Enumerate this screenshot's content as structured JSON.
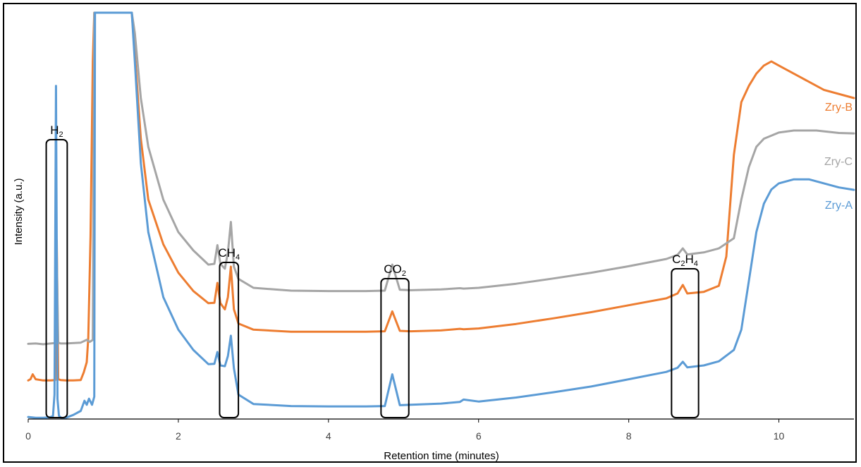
{
  "chart_data": {
    "type": "line",
    "title": "",
    "xlabel": "Retention time (minutes)",
    "ylabel": "Intensity (a.u.)",
    "xlim": [
      0,
      11
    ],
    "ylim": [
      0,
      100
    ],
    "x_ticks": [
      "0",
      "2",
      "4",
      "6",
      "8",
      "10"
    ],
    "grid": false,
    "legend": "inline labels at right end of each trace",
    "peak_labels": [
      {
        "base": "H",
        "sub": "2",
        "x_range": [
          0.24,
          0.52
        ]
      },
      {
        "base": "CH",
        "sub": "4",
        "x_range": [
          2.55,
          2.8
        ]
      },
      {
        "base": "CO",
        "sub": "2",
        "x_range": [
          4.7,
          5.07
        ]
      },
      {
        "base": "C",
        "sub": "2",
        "base2": "H",
        "sub2": "4",
        "x_range": [
          8.57,
          8.93
        ]
      }
    ],
    "series": [
      {
        "name": "Zry-B",
        "color": "#ED7D31",
        "x": [
          0,
          0.03,
          0.06,
          0.1,
          0.2,
          0.3,
          0.36,
          0.38,
          0.4,
          0.43,
          0.5,
          0.6,
          0.7,
          0.74,
          0.78,
          0.8,
          0.83,
          0.86,
          0.88,
          0.9,
          1.38,
          1.42,
          1.5,
          1.6,
          1.8,
          2.0,
          2.2,
          2.4,
          2.48,
          2.52,
          2.56,
          2.62,
          2.66,
          2.7,
          2.74,
          2.8,
          3.0,
          3.5,
          4.0,
          4.5,
          4.75,
          4.85,
          4.95,
          5.1,
          5.5,
          5.75,
          5.8,
          6.0,
          6.5,
          7.0,
          7.5,
          8.0,
          8.5,
          8.65,
          8.72,
          8.78,
          9.0,
          9.2,
          9.3,
          9.4,
          9.5,
          9.6,
          9.7,
          9.8,
          9.9,
          10.0,
          10.3,
          10.6,
          11.0
        ],
        "y": [
          9.5,
          9.8,
          11.0,
          9.8,
          9.5,
          9.5,
          9.6,
          44,
          9.8,
          9.6,
          9.5,
          9.5,
          9.6,
          11.5,
          14,
          20,
          45,
          88,
          100,
          100,
          100,
          90,
          69,
          54,
          43,
          36,
          31.5,
          28.5,
          28.6,
          33.5,
          28.5,
          27,
          30,
          37.5,
          27,
          23.5,
          22,
          21.5,
          21.5,
          21.5,
          21.6,
          26.5,
          21.7,
          21.6,
          21.8,
          22.2,
          22.1,
          22.3,
          23.4,
          24.8,
          26.3,
          28.0,
          29.7,
          30.9,
          33,
          30.9,
          31.3,
          32.8,
          40,
          65,
          78,
          82,
          85,
          87,
          88,
          87,
          84,
          81,
          79
        ]
      },
      {
        "name": "Zry-C",
        "color": "#A5A5A5",
        "x": [
          0,
          0.1,
          0.2,
          0.3,
          0.36,
          0.38,
          0.4,
          0.43,
          0.5,
          0.7,
          0.78,
          0.82,
          0.86,
          0.88,
          0.9,
          1.38,
          1.42,
          1.5,
          1.6,
          1.8,
          2.0,
          2.2,
          2.4,
          2.48,
          2.52,
          2.56,
          2.62,
          2.66,
          2.7,
          2.74,
          2.8,
          3.0,
          3.5,
          4.0,
          4.5,
          4.75,
          4.85,
          4.95,
          5.1,
          5.5,
          5.75,
          5.8,
          6.0,
          6.5,
          7.0,
          7.5,
          8.0,
          8.5,
          8.65,
          8.72,
          8.78,
          9.0,
          9.2,
          9.4,
          9.5,
          9.6,
          9.7,
          9.8,
          10.0,
          10.2,
          10.5,
          10.8,
          11.0
        ],
        "y": [
          18.5,
          18.6,
          18.4,
          18.6,
          18.7,
          40,
          18.8,
          18.6,
          18.6,
          18.8,
          19.5,
          19.0,
          19.5,
          100,
          100,
          100,
          95,
          79,
          67,
          54,
          46,
          41.5,
          38,
          38.2,
          42.8,
          38.2,
          37,
          41,
          48.5,
          37.5,
          34.5,
          32.3,
          31.6,
          31.5,
          31.5,
          31.6,
          38,
          31.8,
          31.7,
          31.9,
          32.2,
          32.1,
          32.3,
          33.3,
          34.6,
          36.0,
          37.6,
          39.4,
          40.4,
          42,
          40.5,
          41,
          42,
          44.5,
          54,
          62,
          67,
          69,
          70.5,
          71,
          71,
          70.4,
          70.3
        ]
      },
      {
        "name": "Zry-A",
        "color": "#5B9BD5",
        "x": [
          0,
          0.1,
          0.2,
          0.28,
          0.33,
          0.35,
          0.37,
          0.39,
          0.41,
          0.43,
          0.46,
          0.5,
          0.6,
          0.7,
          0.75,
          0.78,
          0.81,
          0.85,
          0.88,
          0.89,
          0.9,
          0.92,
          1.38,
          1.42,
          1.5,
          1.6,
          1.8,
          2.0,
          2.2,
          2.4,
          2.48,
          2.52,
          2.56,
          2.62,
          2.66,
          2.7,
          2.74,
          2.8,
          3.0,
          3.5,
          4.0,
          4.5,
          4.75,
          4.85,
          4.95,
          5.1,
          5.5,
          5.75,
          5.8,
          6.0,
          6.5,
          7.0,
          7.5,
          8.0,
          8.5,
          8.65,
          8.72,
          8.78,
          9.0,
          9.2,
          9.4,
          9.5,
          9.6,
          9.7,
          9.8,
          9.9,
          10.0,
          10.2,
          10.4,
          10.6,
          10.8,
          11.0
        ],
        "y": [
          0.5,
          0.3,
          0.3,
          0.4,
          0.7,
          6,
          82,
          5,
          0.8,
          0.4,
          0.2,
          0.3,
          1.0,
          2.0,
          4.5,
          3.5,
          5.0,
          3.5,
          5.5,
          100,
          100,
          100,
          100,
          88,
          63,
          46,
          30,
          22,
          17,
          13.5,
          13.6,
          16.5,
          13.2,
          13.0,
          15.5,
          20.5,
          12.5,
          6.0,
          3.7,
          3.2,
          3.1,
          3.1,
          3.2,
          11.0,
          3.4,
          3.5,
          3.8,
          4.2,
          4.8,
          4.3,
          5.3,
          6.6,
          8.0,
          9.8,
          11.6,
          12.6,
          14.1,
          12.7,
          13.2,
          14.2,
          17.0,
          22,
          34,
          46,
          53,
          56.5,
          58,
          59,
          59,
          58,
          57,
          56.4
        ]
      }
    ]
  }
}
